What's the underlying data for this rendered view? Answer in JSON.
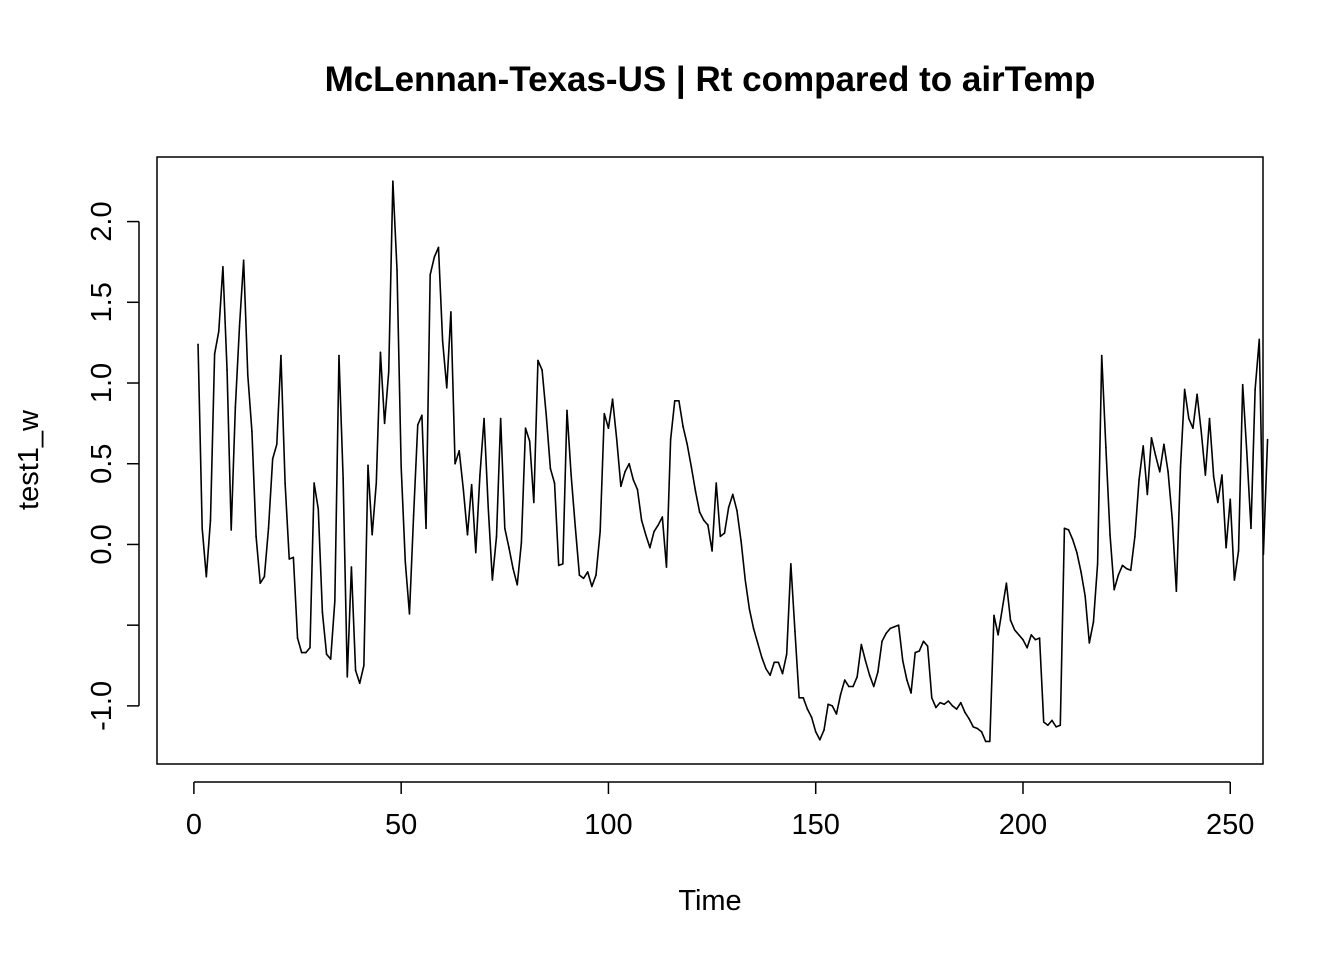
{
  "chart_data": {
    "type": "line",
    "title": "McLennan-Texas-US | Rt compared to airTemp",
    "xlabel": "Time",
    "ylabel": "test1_w",
    "xlim": [
      -8.9,
      257.9
    ],
    "ylim": [
      -1.36,
      2.4
    ],
    "x_ticks": [
      0,
      50,
      100,
      150,
      200,
      250
    ],
    "x_tick_labels": [
      "0",
      "50",
      "100",
      "150",
      "200",
      "250"
    ],
    "y_ticks": [
      -1.0,
      -0.5,
      0.0,
      0.5,
      1.0,
      1.5,
      2.0
    ],
    "y_tick_labels": [
      "-1.0",
      "",
      "0.0",
      "0.5",
      "1.0",
      "1.5",
      "2.0"
    ],
    "grid": false,
    "line_color": "#000000",
    "series": [
      {
        "values": [
          1.24,
          0.1,
          -0.2,
          0.15,
          1.18,
          1.32,
          1.72,
          1.08,
          0.09,
          0.85,
          1.35,
          1.76,
          1.05,
          0.7,
          0.05,
          -0.24,
          -0.2,
          0.1,
          0.53,
          0.62,
          1.17,
          0.38,
          -0.09,
          -0.08,
          -0.58,
          -0.67,
          -0.67,
          -0.64,
          0.38,
          0.22,
          -0.42,
          -0.68,
          -0.71,
          -0.35,
          1.17,
          0.41,
          -0.82,
          -0.14,
          -0.78,
          -0.86,
          -0.75,
          0.49,
          0.06,
          0.38,
          1.19,
          0.75,
          1.07,
          2.25,
          1.7,
          0.48,
          -0.11,
          -0.43,
          0.18,
          0.74,
          0.8,
          0.1,
          1.67,
          1.78,
          1.84,
          1.26,
          0.97,
          1.44,
          0.5,
          0.58,
          0.34,
          0.06,
          0.37,
          -0.05,
          0.43,
          0.78,
          0.23,
          -0.22,
          0.05,
          0.78,
          0.1,
          -0.02,
          -0.15,
          -0.25,
          0.01,
          0.72,
          0.64,
          0.26,
          1.14,
          1.08,
          0.8,
          0.47,
          0.38,
          -0.13,
          -0.12,
          0.83,
          0.43,
          0.11,
          -0.19,
          -0.21,
          -0.17,
          -0.26,
          -0.19,
          0.08,
          0.81,
          0.72,
          0.9,
          0.65,
          0.36,
          0.45,
          0.5,
          0.4,
          0.34,
          0.15,
          0.06,
          -0.02,
          0.08,
          0.12,
          0.17,
          -0.14,
          0.65,
          0.89,
          0.89,
          0.73,
          0.62,
          0.48,
          0.33,
          0.2,
          0.15,
          0.12,
          -0.04,
          0.38,
          0.05,
          0.07,
          0.23,
          0.31,
          0.21,
          0.02,
          -0.22,
          -0.4,
          -0.52,
          -0.61,
          -0.7,
          -0.77,
          -0.81,
          -0.73,
          -0.73,
          -0.8,
          -0.68,
          -0.12,
          -0.54,
          -0.95,
          -0.95,
          -1.02,
          -1.07,
          -1.16,
          -1.21,
          -1.15,
          -0.99,
          -1.0,
          -1.05,
          -0.93,
          -0.84,
          -0.88,
          -0.88,
          -0.82,
          -0.62,
          -0.72,
          -0.81,
          -0.88,
          -0.79,
          -0.6,
          -0.55,
          -0.52,
          -0.51,
          -0.5,
          -0.72,
          -0.84,
          -0.92,
          -0.67,
          -0.66,
          -0.6,
          -0.63,
          -0.95,
          -1.01,
          -0.98,
          -0.99,
          -0.97,
          -1.0,
          -1.02,
          -0.98,
          -1.04,
          -1.08,
          -1.13,
          -1.14,
          -1.16,
          -1.22,
          -1.22,
          -0.44,
          -0.56,
          -0.4,
          -0.24,
          -0.47,
          -0.53,
          -0.56,
          -0.59,
          -0.64,
          -0.56,
          -0.59,
          -0.58,
          -1.1,
          -1.12,
          -1.09,
          -1.13,
          -1.12,
          0.1,
          0.09,
          0.03,
          -0.05,
          -0.17,
          -0.32,
          -0.61,
          -0.48,
          -0.12,
          1.17,
          0.6,
          0.06,
          -0.28,
          -0.19,
          -0.13,
          -0.15,
          -0.16,
          0.05,
          0.4,
          0.61,
          0.31,
          0.66,
          0.55,
          0.45,
          0.62,
          0.45,
          0.16,
          -0.29,
          0.48,
          0.96,
          0.78,
          0.72,
          0.93,
          0.7,
          0.43,
          0.78,
          0.42,
          0.26,
          0.43,
          -0.02,
          0.28,
          -0.22,
          -0.04,
          0.99,
          0.57,
          0.1,
          0.96,
          1.27,
          -0.06,
          0.65
        ]
      }
    ]
  }
}
